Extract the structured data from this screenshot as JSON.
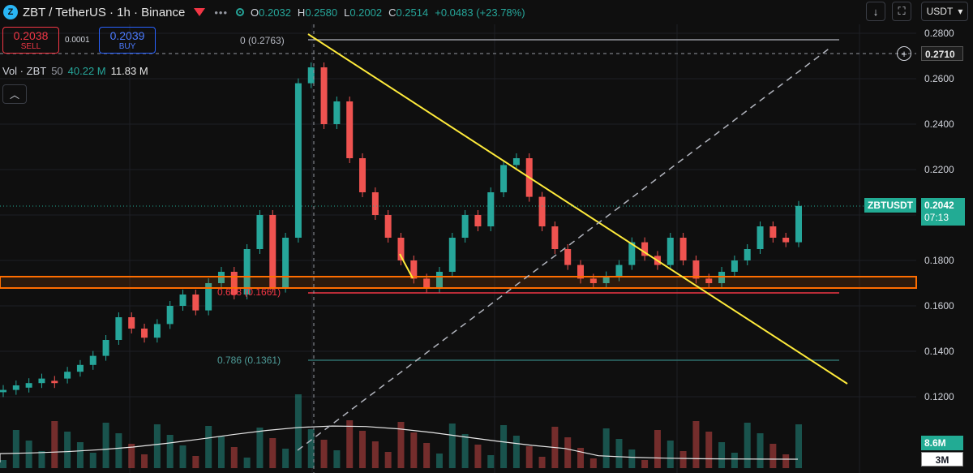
{
  "header": {
    "logo_text": "Z",
    "title": "ZBT / TetherUS · 1h · Binance",
    "more_icon": "•••",
    "ohlc": [
      {
        "key": "O",
        "value": "0.2032"
      },
      {
        "key": "H",
        "value": "0.2580"
      },
      {
        "key": "L",
        "value": "0.2002"
      },
      {
        "key": "C",
        "value": "0.2514"
      }
    ],
    "change": "+0.0483 (+23.78%)"
  },
  "trade": {
    "sell_price": "0.2038",
    "sell_label": "SELL",
    "spread": "0.0001",
    "buy_price": "0.2039",
    "buy_label": "BUY"
  },
  "volume_legend": {
    "name": "Vol · ZBT",
    "length": "50",
    "value1": "40.22 M",
    "value2": "11.83 M"
  },
  "toolbar": {
    "down_icon": "↓",
    "expand_icon": "⛶",
    "currency": "USDT",
    "currency_caret": "▾",
    "collapse_icon": "︿"
  },
  "price_axis": {
    "ticks": [
      "0.2800",
      "0.2600",
      "0.2400",
      "0.2200",
      "0.1800",
      "0.1600",
      "0.1400",
      "0.1200"
    ],
    "crosshair_price": "0.2710",
    "symbol_tag": "ZBTUSDT",
    "last_price": "0.2042",
    "countdown": "07:13",
    "volume_value": "8.6M",
    "ma_value": "3M"
  },
  "fibonacci": {
    "level_0": "0 (0.2763)",
    "level_618": "0.618 (0.1661)",
    "level_786": "0.786 (0.1361)"
  },
  "colors": {
    "up": "#26a69a",
    "down": "#ef5350",
    "trendline": "#ffeb3b",
    "zone": "#ff6d00",
    "fib_red": "#f23645"
  }
}
